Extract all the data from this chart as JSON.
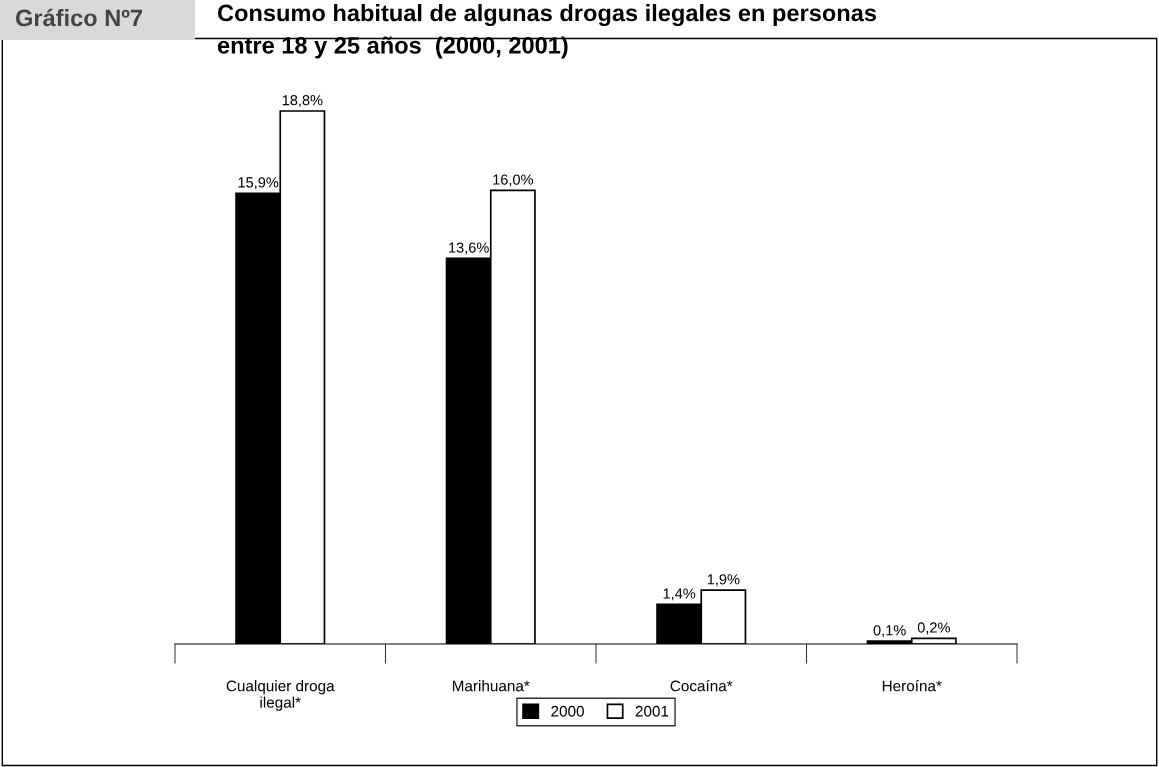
{
  "chart_data": {
    "type": "bar",
    "title": "Consumo habitual de algunas drogas ilegales en personas\nentre 18 y 25 años  (2000, 2001)",
    "annotations": [
      "Gráfico Nº7"
    ],
    "categories": [
      "Cualquier droga\nilegal*",
      "Marihuana*",
      "Cocaína*",
      "Heroína*"
    ],
    "relative": false,
    "series": [
      {
        "name": "2000",
        "color": "#000000",
        "values": [
          15.9,
          13.6,
          1.4,
          0.1
        ],
        "value_labels": [
          "15,9%",
          "13,6%",
          "1,4%",
          "0,1%"
        ]
      },
      {
        "name": "2001",
        "color": "#ffffff",
        "values": [
          18.8,
          16.0,
          1.9,
          0.2
        ],
        "value_labels": [
          "18,8%",
          "16,0%",
          "1,9%",
          "0,2%"
        ]
      }
    ],
    "legend": "bottom",
    "grid": false
  }
}
